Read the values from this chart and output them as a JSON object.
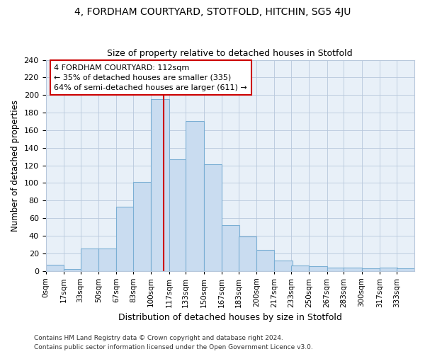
{
  "title": "4, FORDHAM COURTYARD, STOTFOLD, HITCHIN, SG5 4JU",
  "subtitle": "Size of property relative to detached houses in Stotfold",
  "xlabel": "Distribution of detached houses by size in Stotfold",
  "ylabel": "Number of detached properties",
  "bin_labels": [
    "0sqm",
    "17sqm",
    "33sqm",
    "50sqm",
    "67sqm",
    "83sqm",
    "100sqm",
    "117sqm",
    "133sqm",
    "150sqm",
    "167sqm",
    "183sqm",
    "200sqm",
    "217sqm",
    "233sqm",
    "250sqm",
    "267sqm",
    "283sqm",
    "300sqm",
    "317sqm",
    "333sqm"
  ],
  "bin_edges": [
    0,
    17,
    33,
    50,
    67,
    83,
    100,
    117,
    133,
    150,
    167,
    183,
    200,
    217,
    233,
    250,
    267,
    283,
    300,
    317,
    333
  ],
  "bar_heights": [
    7,
    2,
    25,
    25,
    73,
    101,
    195,
    127,
    170,
    121,
    52,
    39,
    24,
    12,
    6,
    5,
    4,
    4,
    3,
    4,
    3
  ],
  "bar_color": "#c9dcf0",
  "bar_edge_color": "#7bafd4",
  "grid_color": "#b8c8dc",
  "bg_color": "#ffffff",
  "ax_bg_color": "#e8f0f8",
  "vline_x": 112,
  "vline_color": "#cc0000",
  "annotation_text": "4 FORDHAM COURTYARD: 112sqm\n← 35% of detached houses are smaller (335)\n64% of semi-detached houses are larger (611) →",
  "annotation_box_color": "white",
  "annotation_box_edge": "#cc0000",
  "ylim": [
    0,
    240
  ],
  "yticks": [
    0,
    20,
    40,
    60,
    80,
    100,
    120,
    140,
    160,
    180,
    200,
    220,
    240
  ],
  "footnote1": "Contains HM Land Registry data © Crown copyright and database right 2024.",
  "footnote2": "Contains public sector information licensed under the Open Government Licence v3.0."
}
